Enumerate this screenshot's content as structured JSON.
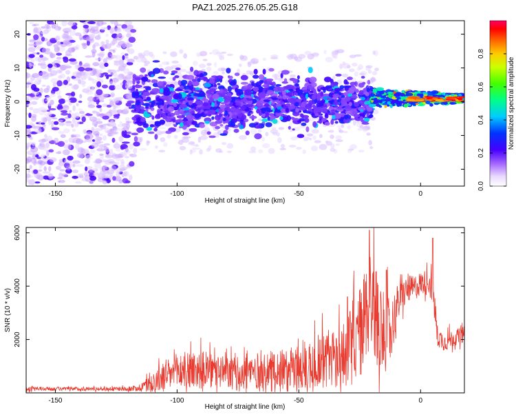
{
  "chart_data": [
    {
      "type": "heatmap",
      "title": "PAZ1.2025.276.05.25.G18",
      "xlabel": "Height of straight line (km)",
      "ylabel": "Frequency (Hz)",
      "xlim": [
        -162,
        18
      ],
      "ylim": [
        -25,
        24
      ],
      "xticks": [
        -150,
        -100,
        -50,
        0
      ],
      "xtick_labels": [
        "-150",
        "-100",
        "-50",
        "0"
      ],
      "yticks": [
        -20,
        -10,
        0,
        10,
        20
      ],
      "ytick_labels": [
        "-20",
        "-10",
        "0",
        "10",
        "20"
      ],
      "colorbar": {
        "label": "Normalized spectral amplitude",
        "range": [
          0,
          1
        ],
        "ticks": [
          0.0,
          0.2,
          0.4,
          0.6,
          0.8
        ],
        "tick_labels": [
          "0.0",
          "0.2",
          "0.4",
          "0.6",
          "0.8"
        ],
        "colors": [
          "#ffffff",
          "#c9a8ff",
          "#7a1fff",
          "#2200ff",
          "#0000ff",
          "#00ffff",
          "#00ff00",
          "#ffff00",
          "#ff8800",
          "#ff0000",
          "#ff0066"
        ]
      },
      "regions": [
        {
          "x": [
            -162,
            -118
          ],
          "freq_spread": [
            -24,
            24
          ],
          "amplitude": [
            0.02,
            0.15
          ]
        },
        {
          "x": [
            -118,
            -20
          ],
          "freq_center": 0,
          "freq_spread": [
            -8,
            8
          ],
          "amplitude": [
            0.1,
            0.3
          ]
        },
        {
          "x": [
            -20,
            18
          ],
          "freq_center": 1,
          "freq_spread": [
            -2,
            4
          ],
          "amplitude": [
            0.4,
            0.95
          ]
        }
      ]
    },
    {
      "type": "line",
      "xlabel": "Height of straight line (km)",
      "ylabel": "SNR (10 * v/v)",
      "xlim": [
        -162,
        18
      ],
      "ylim": [
        0,
        6200
      ],
      "xticks": [
        -150,
        -100,
        -50,
        0
      ],
      "xtick_labels": [
        "-150",
        "-100",
        "-50",
        "0"
      ],
      "yticks": [
        2000,
        4000,
        6000
      ],
      "ytick_labels": [
        "2000",
        "4000",
        "6000"
      ],
      "series": [
        {
          "name": "SNR",
          "color": "#e83a2e",
          "x": [
            -162,
            -150,
            -140,
            -130,
            -120,
            -115,
            -110,
            -105,
            -100,
            -95,
            -90,
            -85,
            -80,
            -75,
            -70,
            -65,
            -60,
            -55,
            -50,
            -45,
            -40,
            -35,
            -30,
            -27,
            -24,
            -22,
            -20,
            -18,
            -15,
            -12,
            -10,
            -8,
            -5,
            -3,
            0,
            3,
            5,
            6,
            7,
            10,
            12,
            15,
            18
          ],
          "mean": [
            150,
            150,
            150,
            150,
            150,
            200,
            400,
            600,
            800,
            900,
            850,
            800,
            750,
            700,
            800,
            800,
            850,
            850,
            900,
            1100,
            1300,
            1300,
            1500,
            2000,
            2400,
            3200,
            3600,
            2800,
            2200,
            2400,
            3200,
            3600,
            3900,
            3900,
            4100,
            4200,
            3900,
            3000,
            2100,
            1900,
            2000,
            2100,
            2200
          ],
          "noise": [
            70,
            70,
            70,
            70,
            80,
            150,
            400,
            550,
            700,
            750,
            700,
            650,
            600,
            650,
            700,
            700,
            750,
            800,
            900,
            1000,
            1100,
            1200,
            1400,
            1600,
            1800,
            2000,
            2100,
            1800,
            1500,
            1200,
            800,
            600,
            500,
            500,
            450,
            450,
            600,
            700,
            400,
            350,
            350,
            300,
            300
          ],
          "peaks": [
            {
              "x": -21,
              "y": 6100
            },
            {
              "x": -30,
              "y": 3600
            },
            {
              "x": -14,
              "y": 4600
            },
            {
              "x": 5,
              "y": 5800
            }
          ]
        }
      ]
    }
  ]
}
